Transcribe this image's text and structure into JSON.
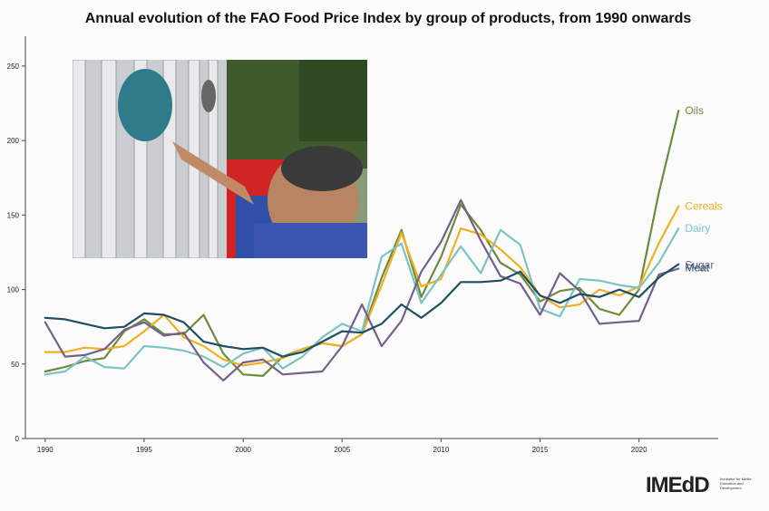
{
  "chart_data": {
    "type": "line",
    "title": "Annual evolution of the FAO Food Price Index by group of products, from 1990 onwards",
    "xlabel": "",
    "ylabel": "",
    "x": [
      1990,
      1991,
      1992,
      1993,
      1994,
      1995,
      1996,
      1997,
      1998,
      1999,
      2000,
      2001,
      2002,
      2003,
      2004,
      2005,
      2006,
      2007,
      2008,
      2009,
      2010,
      2011,
      2012,
      2013,
      2014,
      2015,
      2016,
      2017,
      2018,
      2019,
      2020,
      2021,
      2022
    ],
    "xlim": [
      1989,
      2024
    ],
    "ylim": [
      0,
      270
    ],
    "yticks": [
      0,
      50,
      100,
      150,
      200,
      250
    ],
    "xticks": [
      1990,
      1995,
      2000,
      2005,
      2010,
      2015,
      2020
    ],
    "series": [
      {
        "name": "Oils",
        "color": "#6e8b3d",
        "values": [
          45,
          48,
          52,
          54,
          72,
          80,
          70,
          70,
          83,
          57,
          43,
          42,
          55,
          60,
          64,
          62,
          70,
          108,
          140,
          95,
          122,
          157,
          140,
          118,
          110,
          92,
          99,
          101,
          87,
          83,
          100,
          165,
          220
        ]
      },
      {
        "name": "Cereals",
        "color": "#f0b020",
        "values": [
          58,
          58,
          61,
          60,
          62,
          72,
          83,
          68,
          62,
          53,
          49,
          51,
          54,
          60,
          64,
          62,
          70,
          103,
          138,
          102,
          107,
          141,
          137,
          127,
          115,
          96,
          88,
          90,
          100,
          96,
          102,
          131,
          156
        ]
      },
      {
        "name": "Dairy",
        "color": "#7cc3c3",
        "values": [
          43,
          45,
          55,
          48,
          47,
          62,
          61,
          59,
          55,
          48,
          57,
          61,
          47,
          55,
          68,
          77,
          72,
          122,
          131,
          91,
          110,
          129,
          111,
          140,
          130,
          87,
          82,
          107,
          106,
          103,
          101,
          118,
          141
        ]
      },
      {
        "name": "Sugar",
        "color": "#74608a",
        "values": [
          78,
          55,
          56,
          60,
          73,
          78,
          69,
          71,
          51,
          39,
          51,
          53,
          43,
          44,
          45,
          62,
          90,
          62,
          79,
          112,
          132,
          160,
          133,
          109,
          104,
          83,
          111,
          99,
          77,
          78,
          79,
          110,
          114
        ]
      },
      {
        "name": "Meat",
        "color": "#1d4e63",
        "values": [
          81,
          80,
          77,
          74,
          75,
          84,
          83,
          78,
          65,
          62,
          60,
          61,
          55,
          58,
          65,
          72,
          71,
          77,
          90,
          81,
          91,
          105,
          105,
          106,
          112,
          96,
          91,
          97,
          95,
          100,
          95,
          108,
          117
        ]
      }
    ]
  },
  "photo": {
    "description_icon": "photo-protest-pots"
  },
  "logo": {
    "name": "IMEdD",
    "tagline": "Incubator for Media Education and Development"
  }
}
